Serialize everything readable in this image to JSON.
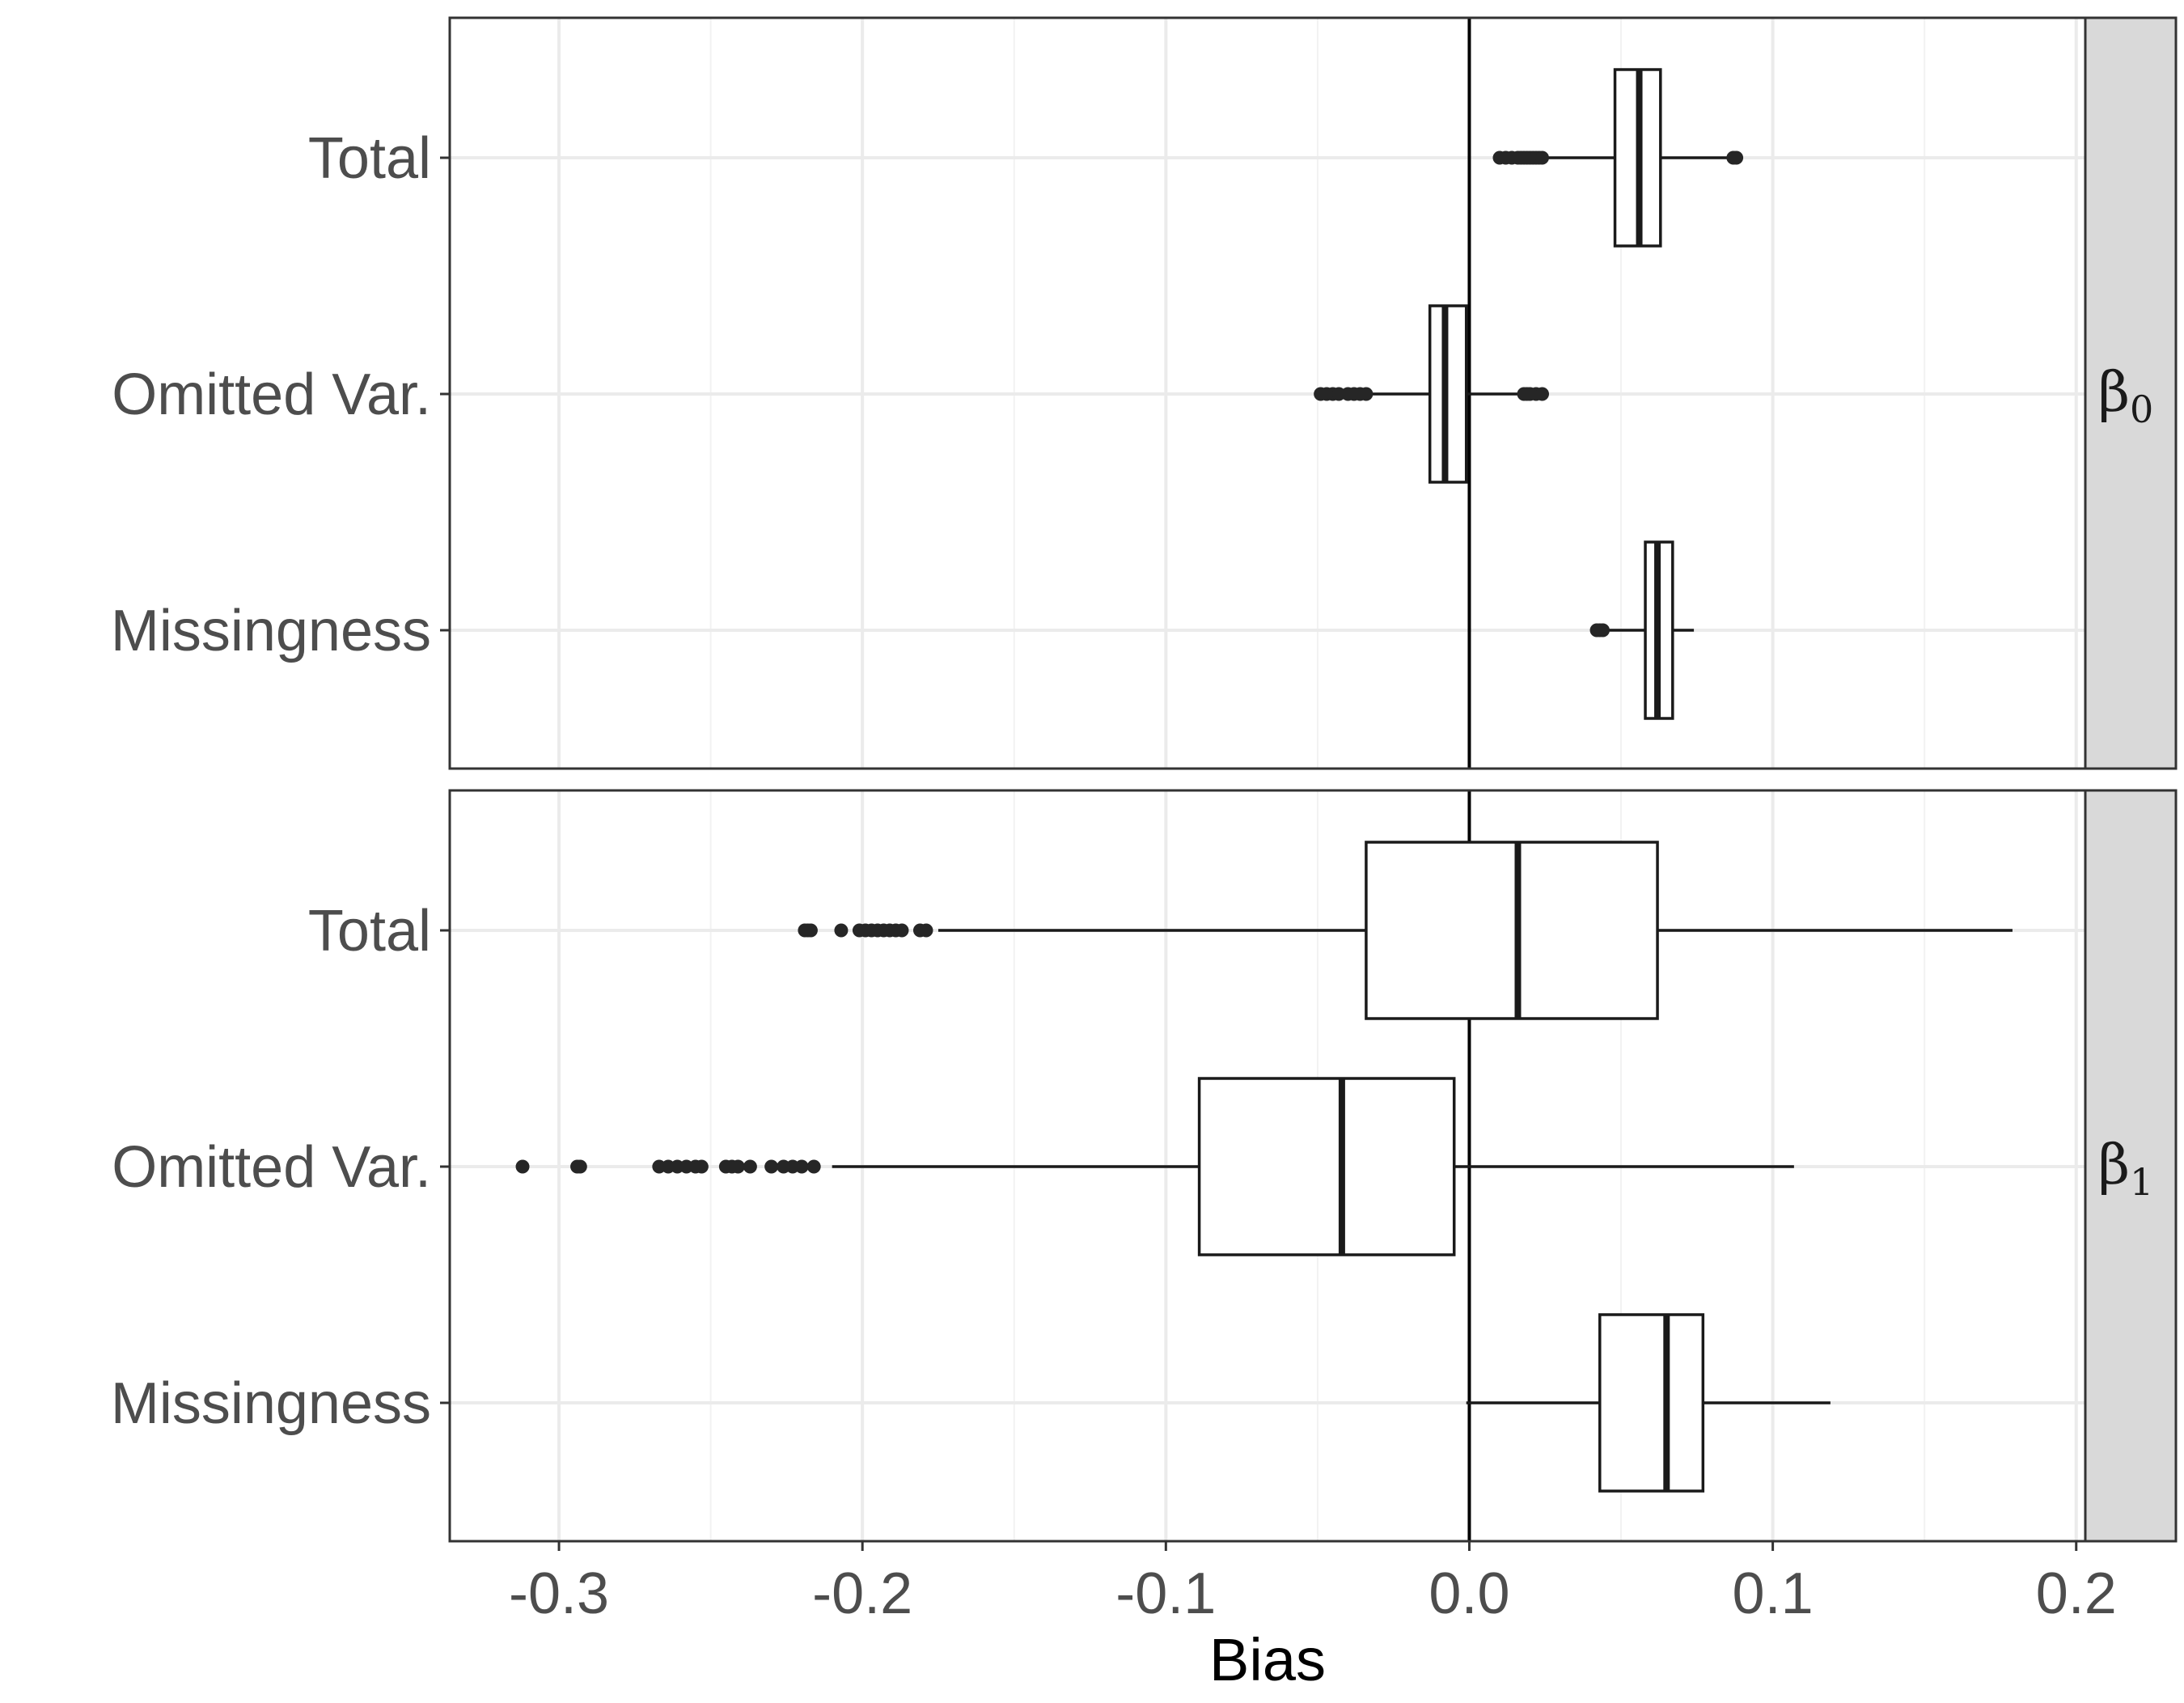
{
  "chart_data": {
    "type": "boxplot",
    "orientation": "horizontal",
    "xlabel": "Bias",
    "xlim": [
      -0.336,
      0.203
    ],
    "x_ticks": [
      "-0.3",
      "-0.2",
      "-0.1",
      "0.0",
      "0.1",
      "0.2"
    ],
    "x_tick_values": [
      -0.3,
      -0.2,
      -0.1,
      0.0,
      0.1,
      0.2
    ],
    "reference_line_x": 0.0,
    "grid": true,
    "colors": {
      "box_fill": "#ffffff",
      "stroke": "#1a1a1a",
      "grid_major": "#ebebeb",
      "strip_fill": "#d9d9d9"
    },
    "categories": [
      "Total",
      "Omitted Var.",
      "Missingness"
    ],
    "panels": [
      {
        "strip": "β",
        "strip_sub": "0",
        "boxes": [
          {
            "category": "Total",
            "whisker_low": 0.026,
            "q1": 0.048,
            "median": 0.056,
            "q3": 0.063,
            "whisker_high": 0.086,
            "outliers": [
              0.01,
              0.012,
              0.014,
              0.016,
              0.017,
              0.018,
              0.019,
              0.02,
              0.021,
              0.022,
              0.023,
              0.024,
              0.087,
              0.088
            ]
          },
          {
            "category": "Omitted Var.",
            "whisker_low": -0.032,
            "q1": -0.013,
            "median": -0.008,
            "q3": -0.001,
            "whisker_high": 0.016,
            "outliers": [
              -0.049,
              -0.047,
              -0.045,
              -0.043,
              -0.04,
              -0.038,
              -0.036,
              -0.034,
              0.018,
              0.019,
              0.02,
              0.022,
              0.024
            ]
          },
          {
            "category": "Missingness",
            "whisker_low": 0.046,
            "q1": 0.058,
            "median": 0.062,
            "q3": 0.067,
            "whisker_high": 0.074,
            "outliers": [
              0.042,
              0.043,
              0.044
            ]
          }
        ]
      },
      {
        "strip": "β",
        "strip_sub": "1",
        "boxes": [
          {
            "category": "Total",
            "whisker_low": -0.175,
            "q1": -0.034,
            "median": 0.016,
            "q3": 0.062,
            "whisker_high": 0.179,
            "outliers": [
              -0.219,
              -0.218,
              -0.217,
              -0.207,
              -0.201,
              -0.199,
              -0.197,
              -0.195,
              -0.193,
              -0.191,
              -0.189,
              -0.187,
              -0.181,
              -0.179
            ]
          },
          {
            "category": "Omitted Var.",
            "whisker_low": -0.21,
            "q1": -0.089,
            "median": -0.042,
            "q3": -0.005,
            "whisker_high": 0.107,
            "outliers": [
              -0.312,
              -0.294,
              -0.293,
              -0.267,
              -0.264,
              -0.261,
              -0.258,
              -0.255,
              -0.253,
              -0.245,
              -0.243,
              -0.241,
              -0.237,
              -0.23,
              -0.226,
              -0.223,
              -0.22,
              -0.216
            ]
          },
          {
            "category": "Missingness",
            "whisker_low": -0.001,
            "q1": 0.043,
            "median": 0.065,
            "q3": 0.077,
            "whisker_high": 0.119,
            "outliers": []
          }
        ]
      }
    ]
  }
}
